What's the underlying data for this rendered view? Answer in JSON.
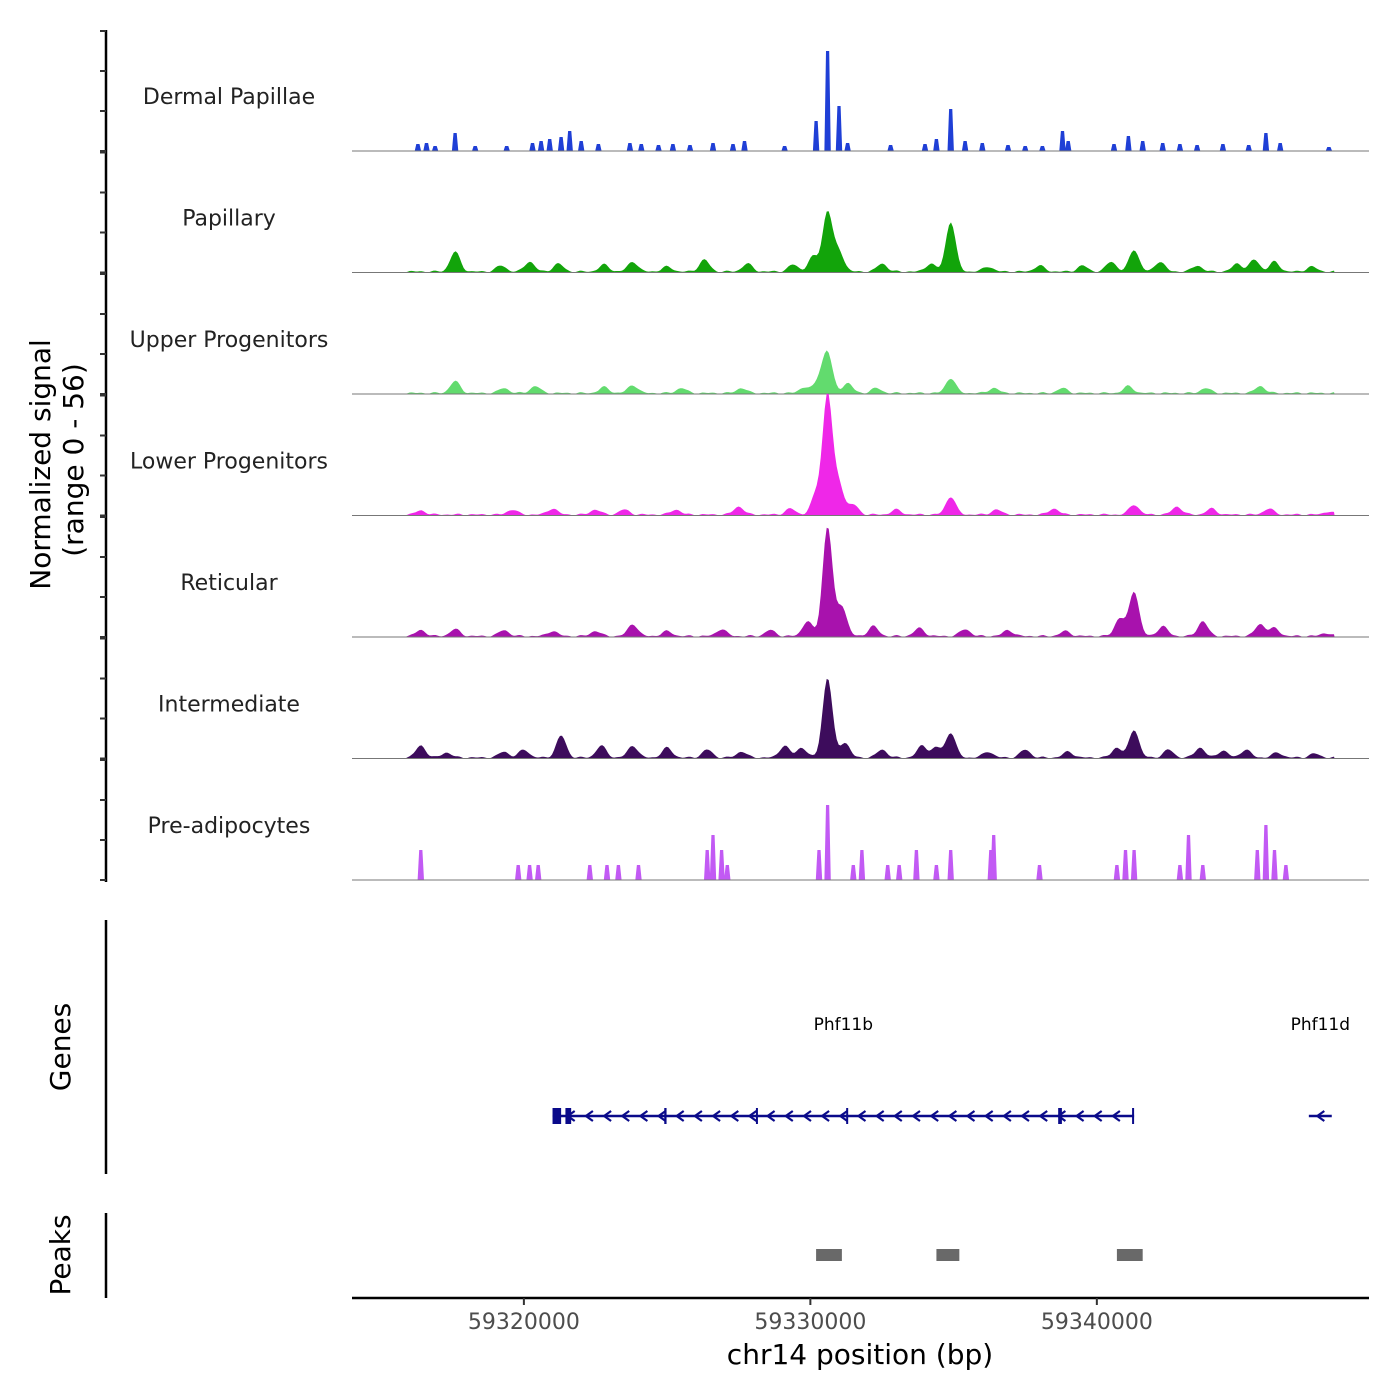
{
  "chart_data": {
    "type": "area",
    "subtype": "genome-coverage-track",
    "chromosome": "chr14",
    "xlabel": "chr14 position (bp)",
    "xlim": [
      59314000,
      59349500
    ],
    "xticks": [
      59320000,
      59330000,
      59340000
    ],
    "xtick_labels": [
      "59320000",
      "59330000",
      "59340000"
    ],
    "ylabel_line1": "Normalized signal",
    "ylabel_line2": "(range 0 - 56)",
    "ylim": [
      0,
      56
    ],
    "tracks": [
      {
        "name": "Dermal Papillae",
        "color": "#1f3fd6",
        "style": "bars",
        "peaks": [
          [
            59316300,
            0.07
          ],
          [
            59316600,
            0.08
          ],
          [
            59316900,
            0.05
          ],
          [
            59317600,
            0.18
          ],
          [
            59318300,
            0.05
          ],
          [
            59319400,
            0.05
          ],
          [
            59320300,
            0.08
          ],
          [
            59320600,
            0.1
          ],
          [
            59320900,
            0.12
          ],
          [
            59321300,
            0.14
          ],
          [
            59321600,
            0.2
          ],
          [
            59322000,
            0.1
          ],
          [
            59322600,
            0.07
          ],
          [
            59323700,
            0.08
          ],
          [
            59324100,
            0.07
          ],
          [
            59324700,
            0.06
          ],
          [
            59325200,
            0.07
          ],
          [
            59325800,
            0.06
          ],
          [
            59326600,
            0.08
          ],
          [
            59327300,
            0.07
          ],
          [
            59327700,
            0.1
          ],
          [
            59329100,
            0.05
          ],
          [
            59330200,
            0.3
          ],
          [
            59330600,
            1.0
          ],
          [
            59331000,
            0.45
          ],
          [
            59331300,
            0.08
          ],
          [
            59332800,
            0.06
          ],
          [
            59334000,
            0.07
          ],
          [
            59334400,
            0.12
          ],
          [
            59334900,
            0.42
          ],
          [
            59335400,
            0.1
          ],
          [
            59336000,
            0.08
          ],
          [
            59336900,
            0.06
          ],
          [
            59337500,
            0.05
          ],
          [
            59338100,
            0.05
          ],
          [
            59338800,
            0.2
          ],
          [
            59339000,
            0.1
          ],
          [
            59340600,
            0.07
          ],
          [
            59341100,
            0.15
          ],
          [
            59341600,
            0.1
          ],
          [
            59342300,
            0.08
          ],
          [
            59342900,
            0.07
          ],
          [
            59343500,
            0.06
          ],
          [
            59344400,
            0.07
          ],
          [
            59345300,
            0.06
          ],
          [
            59345900,
            0.18
          ],
          [
            59346400,
            0.08
          ],
          [
            59348100,
            0.04
          ]
        ]
      },
      {
        "name": "Papillary",
        "color": "#12a40a",
        "style": "area",
        "peaks": [
          [
            59317600,
            0.2
          ],
          [
            59319200,
            0.06
          ],
          [
            59320200,
            0.1
          ],
          [
            59321200,
            0.08
          ],
          [
            59322800,
            0.07
          ],
          [
            59323800,
            0.1
          ],
          [
            59325000,
            0.05
          ],
          [
            59326300,
            0.12
          ],
          [
            59327800,
            0.08
          ],
          [
            59329400,
            0.07
          ],
          [
            59330100,
            0.15
          ],
          [
            59330600,
            0.6
          ],
          [
            59331000,
            0.2
          ],
          [
            59332500,
            0.08
          ],
          [
            59334200,
            0.08
          ],
          [
            59334900,
            0.5
          ],
          [
            59336200,
            0.05
          ],
          [
            59338000,
            0.06
          ],
          [
            59339500,
            0.06
          ],
          [
            59340500,
            0.1
          ],
          [
            59341300,
            0.22
          ],
          [
            59342200,
            0.1
          ],
          [
            59343500,
            0.06
          ],
          [
            59344900,
            0.08
          ],
          [
            59345500,
            0.12
          ],
          [
            59346200,
            0.1
          ],
          [
            59347500,
            0.05
          ]
        ]
      },
      {
        "name": "Upper Progenitors",
        "color": "#62db6e",
        "style": "area",
        "peaks": [
          [
            59317600,
            0.12
          ],
          [
            59319300,
            0.05
          ],
          [
            59320400,
            0.07
          ],
          [
            59322800,
            0.06
          ],
          [
            59323800,
            0.08
          ],
          [
            59325500,
            0.05
          ],
          [
            59327600,
            0.05
          ],
          [
            59329800,
            0.06
          ],
          [
            59330300,
            0.12
          ],
          [
            59330600,
            0.4
          ],
          [
            59331300,
            0.1
          ],
          [
            59332300,
            0.05
          ],
          [
            59334900,
            0.15
          ],
          [
            59336400,
            0.05
          ],
          [
            59338800,
            0.05
          ],
          [
            59341100,
            0.07
          ],
          [
            59343800,
            0.05
          ],
          [
            59345700,
            0.07
          ]
        ]
      },
      {
        "name": "Lower Progenitors",
        "color": "#ef27e8",
        "style": "area",
        "peaks": [
          [
            59316400,
            0.04
          ],
          [
            59319600,
            0.05
          ],
          [
            59321000,
            0.06
          ],
          [
            59322500,
            0.05
          ],
          [
            59323500,
            0.05
          ],
          [
            59325300,
            0.05
          ],
          [
            59327500,
            0.08
          ],
          [
            59329300,
            0.06
          ],
          [
            59330200,
            0.2
          ],
          [
            59330600,
            1.2
          ],
          [
            59331000,
            0.3
          ],
          [
            59331500,
            0.1
          ],
          [
            59333000,
            0.05
          ],
          [
            59334900,
            0.18
          ],
          [
            59336500,
            0.05
          ],
          [
            59338500,
            0.06
          ],
          [
            59341300,
            0.1
          ],
          [
            59342800,
            0.08
          ],
          [
            59344000,
            0.06
          ],
          [
            59346000,
            0.06
          ],
          [
            59348100,
            0.03
          ]
        ]
      },
      {
        "name": "Reticular",
        "color": "#a812ad",
        "style": "area",
        "peaks": [
          [
            59316400,
            0.06
          ],
          [
            59317600,
            0.07
          ],
          [
            59319300,
            0.06
          ],
          [
            59321000,
            0.05
          ],
          [
            59322500,
            0.05
          ],
          [
            59323800,
            0.12
          ],
          [
            59325000,
            0.05
          ],
          [
            59326900,
            0.07
          ],
          [
            59328600,
            0.06
          ],
          [
            59329900,
            0.15
          ],
          [
            59330600,
            1.1
          ],
          [
            59331100,
            0.3
          ],
          [
            59332200,
            0.1
          ],
          [
            59333800,
            0.08
          ],
          [
            59335400,
            0.07
          ],
          [
            59336900,
            0.06
          ],
          [
            59338900,
            0.05
          ],
          [
            59340800,
            0.18
          ],
          [
            59341300,
            0.45
          ],
          [
            59342300,
            0.1
          ],
          [
            59343700,
            0.15
          ],
          [
            59345700,
            0.12
          ],
          [
            59346200,
            0.08
          ],
          [
            59348000,
            0.03
          ]
        ]
      },
      {
        "name": "Intermediate",
        "color": "#3d0c5c",
        "style": "area",
        "peaks": [
          [
            59316400,
            0.12
          ],
          [
            59317300,
            0.05
          ],
          [
            59319300,
            0.06
          ],
          [
            59320000,
            0.08
          ],
          [
            59321300,
            0.22
          ],
          [
            59322700,
            0.12
          ],
          [
            59323800,
            0.12
          ],
          [
            59325000,
            0.1
          ],
          [
            59326400,
            0.08
          ],
          [
            59327600,
            0.06
          ],
          [
            59329100,
            0.12
          ],
          [
            59329700,
            0.1
          ],
          [
            59330600,
            0.8
          ],
          [
            59331200,
            0.15
          ],
          [
            59332500,
            0.08
          ],
          [
            59333900,
            0.12
          ],
          [
            59334400,
            0.1
          ],
          [
            59334900,
            0.25
          ],
          [
            59336200,
            0.06
          ],
          [
            59337500,
            0.08
          ],
          [
            59339000,
            0.06
          ],
          [
            59340700,
            0.1
          ],
          [
            59341300,
            0.28
          ],
          [
            59342500,
            0.08
          ],
          [
            59343600,
            0.1
          ],
          [
            59344400,
            0.07
          ],
          [
            59345200,
            0.08
          ],
          [
            59346300,
            0.05
          ],
          [
            59347600,
            0.04
          ]
        ]
      },
      {
        "name": "Pre-adipocytes",
        "color": "#c25af4",
        "style": "bars",
        "peaks": [
          [
            59316400,
            0.3
          ],
          [
            59319800,
            0.15
          ],
          [
            59320200,
            0.15
          ],
          [
            59320500,
            0.15
          ],
          [
            59322300,
            0.15
          ],
          [
            59322900,
            0.15
          ],
          [
            59323300,
            0.15
          ],
          [
            59324000,
            0.15
          ],
          [
            59326400,
            0.3
          ],
          [
            59326600,
            0.45
          ],
          [
            59326900,
            0.3
          ],
          [
            59327100,
            0.15
          ],
          [
            59330300,
            0.3
          ],
          [
            59330600,
            0.75
          ],
          [
            59331500,
            0.15
          ],
          [
            59331800,
            0.3
          ],
          [
            59332700,
            0.15
          ],
          [
            59333100,
            0.15
          ],
          [
            59333700,
            0.3
          ],
          [
            59334400,
            0.15
          ],
          [
            59334900,
            0.3
          ],
          [
            59336300,
            0.3
          ],
          [
            59336400,
            0.45
          ],
          [
            59338000,
            0.15
          ],
          [
            59340700,
            0.15
          ],
          [
            59341000,
            0.3
          ],
          [
            59341300,
            0.3
          ],
          [
            59342900,
            0.15
          ],
          [
            59343200,
            0.45
          ],
          [
            59343700,
            0.15
          ],
          [
            59345600,
            0.3
          ],
          [
            59345900,
            0.55
          ],
          [
            59346200,
            0.3
          ],
          [
            59346600,
            0.15
          ]
        ]
      }
    ],
    "genes_label": "Genes",
    "genes": [
      {
        "name": "Phf11b",
        "start": 59321000,
        "end": 59341300,
        "strand": "-",
        "exons": [
          [
            59321000,
            59321300
          ],
          [
            59321450,
            59321650
          ],
          [
            59324900,
            59324980
          ],
          [
            59328100,
            59328160
          ],
          [
            59331250,
            59331300
          ],
          [
            59338650,
            59338780
          ],
          [
            59341230,
            59341300
          ]
        ],
        "color": "#0a0a8a"
      },
      {
        "name": "Phf11d",
        "start": 59347400,
        "end": 59348200,
        "strand": "-",
        "exons": [],
        "color": "#0a0a8a"
      }
    ],
    "peaks_label": "Peaks",
    "called_peaks": [
      [
        59330200,
        59331100
      ],
      [
        59334400,
        59335200
      ],
      [
        59340700,
        59341600
      ]
    ],
    "called_peaks_color": "#696969"
  }
}
